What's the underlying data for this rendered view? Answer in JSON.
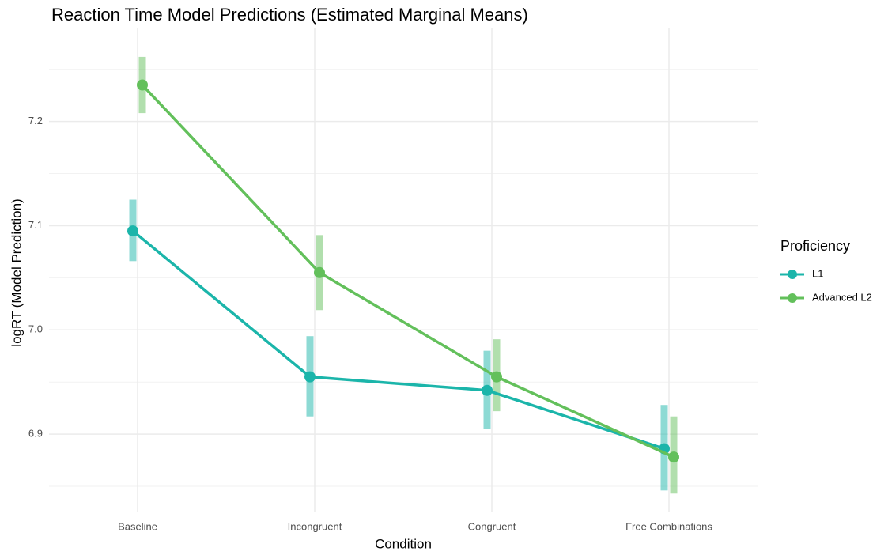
{
  "chart_data": {
    "type": "line",
    "title": "Reaction Time Model Predictions (Estimated Marginal Means)",
    "xlabel": "Condition",
    "ylabel": "logRT (Model Prediction)",
    "categories": [
      "Baseline",
      "Incongruent",
      "Congruent",
      "Free Combinations"
    ],
    "series": [
      {
        "name": "L1",
        "color": "#1bb5aa",
        "values": [
          7.095,
          6.955,
          6.942,
          6.886
        ],
        "lower": [
          7.066,
          6.917,
          6.905,
          6.846
        ],
        "upper": [
          7.125,
          6.994,
          6.98,
          6.928
        ]
      },
      {
        "name": "Advanced L2",
        "color": "#63c05b",
        "values": [
          7.235,
          7.055,
          6.955,
          6.878
        ],
        "lower": [
          7.208,
          7.019,
          6.922,
          6.843
        ],
        "upper": [
          7.262,
          7.091,
          6.991,
          6.917
        ]
      }
    ],
    "ylim": [
      6.825,
      7.29
    ],
    "yticks": [
      6.9,
      {
        "value": 7,
        "label": "7.0"
      },
      7.1,
      7.2
    ],
    "yminor": [
      6.85,
      6.95,
      7.05,
      7.15,
      7.25
    ],
    "grid": true,
    "legend_title": "Proficiency",
    "legend": "right"
  }
}
